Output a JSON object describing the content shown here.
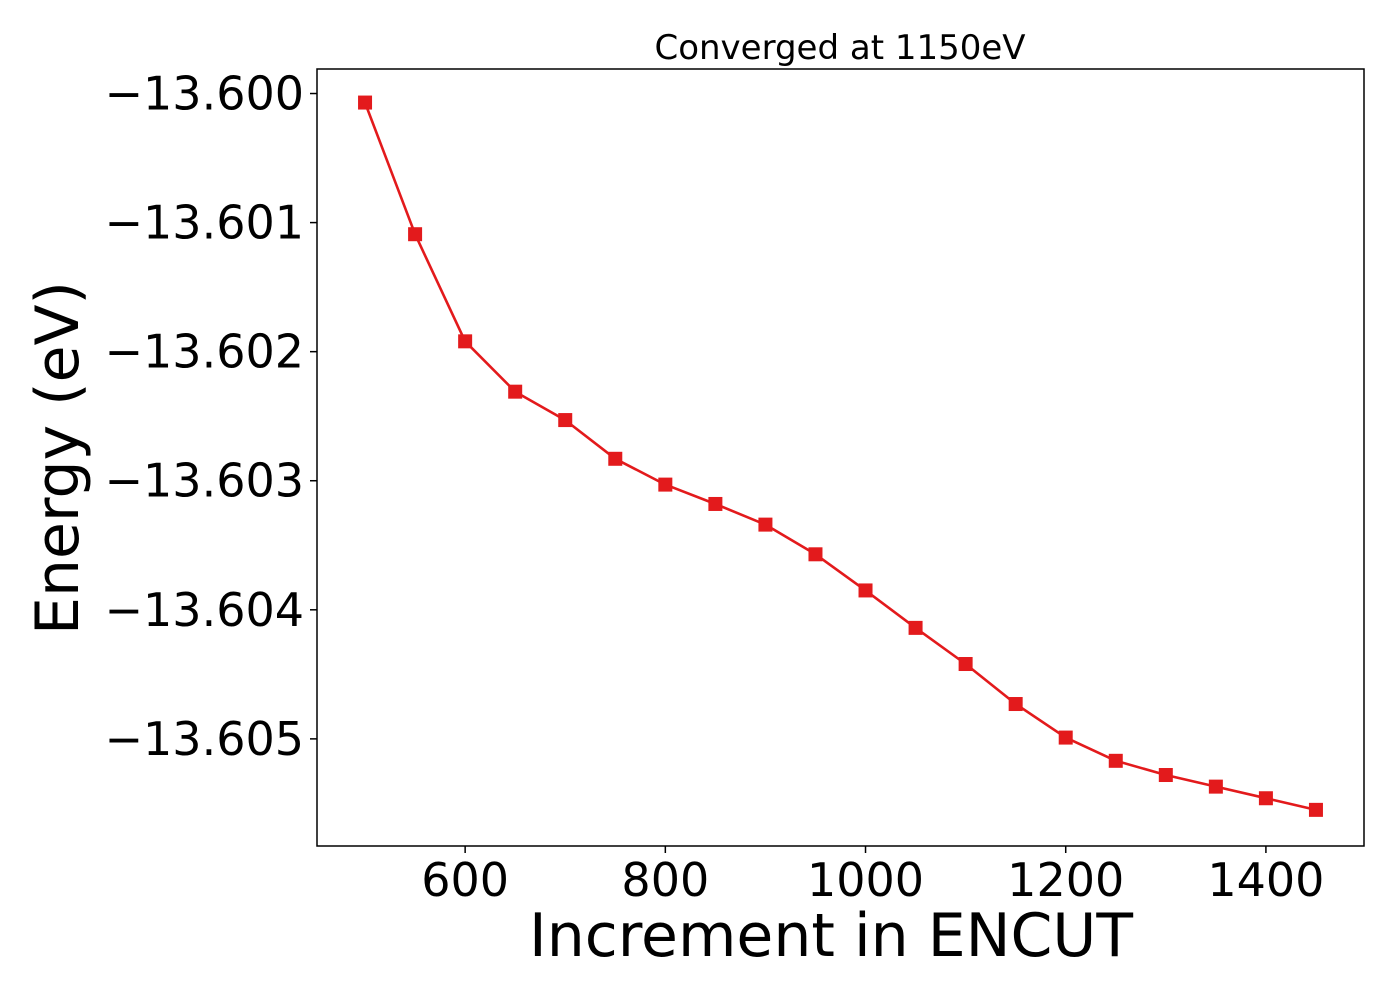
{
  "chart_data": {
    "type": "line",
    "title": "Converged at 1150eV",
    "xlabel": "Increment in ENCUT",
    "ylabel": "Energy (eV)",
    "xlim": [
      452,
      1498
    ],
    "ylim": [
      -13.60583,
      -13.59981
    ],
    "x_ticks": [
      600,
      800,
      1000,
      1200,
      1400
    ],
    "x_tick_labels": [
      "600",
      "800",
      "1000",
      "1200",
      "1400"
    ],
    "y_ticks": [
      -13.6,
      -13.601,
      -13.602,
      -13.603,
      -13.604,
      -13.605
    ],
    "y_tick_labels": [
      "−13.600",
      "−13.601",
      "−13.602",
      "−13.603",
      "−13.604",
      "−13.605"
    ],
    "grid": false,
    "legend": null,
    "series": [
      {
        "color": "#e31a1c",
        "marker": "square",
        "x": [
          500,
          550,
          600,
          650,
          700,
          750,
          800,
          850,
          900,
          950,
          1000,
          1050,
          1100,
          1150,
          1200,
          1250,
          1300,
          1350,
          1400,
          1450
        ],
        "y": [
          -13.60007,
          -13.60109,
          -13.60192,
          -13.60231,
          -13.60253,
          -13.60283,
          -13.60303,
          -13.60318,
          -13.60334,
          -13.60357,
          -13.60385,
          -13.60414,
          -13.60442,
          -13.60473,
          -13.60499,
          -13.60517,
          -13.60528,
          -13.60537,
          -13.60546,
          -13.60555
        ]
      }
    ]
  }
}
